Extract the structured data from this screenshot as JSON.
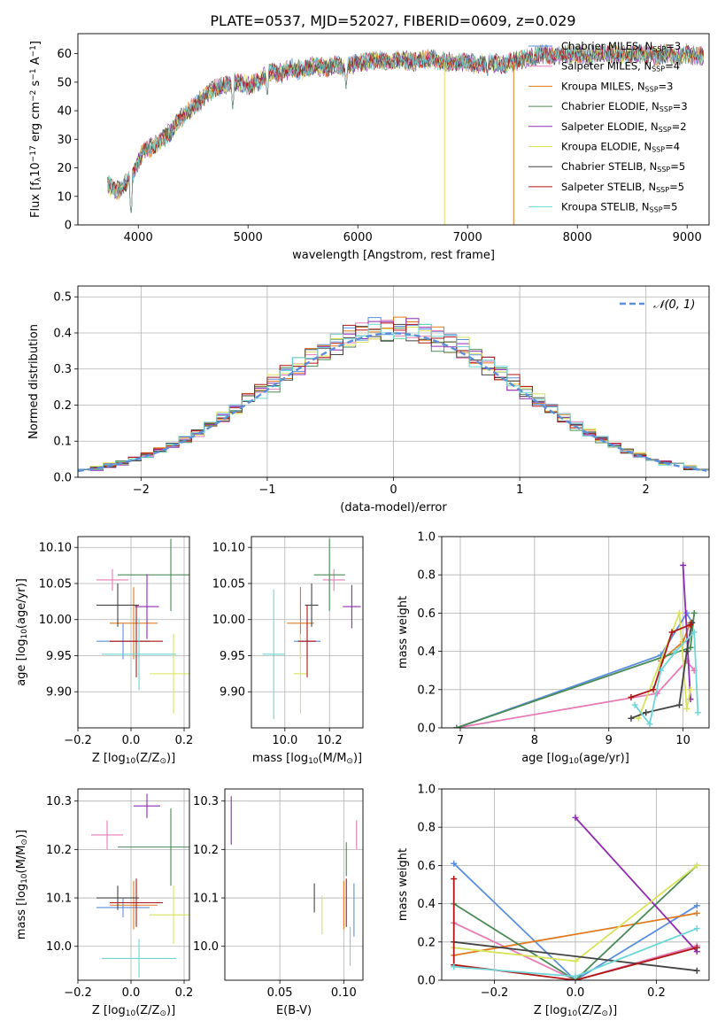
{
  "figure": {
    "title": "PLATE=0537, MJD=52027, FIBERID=0609, z=0.029"
  },
  "colors": {
    "chabrier_miles": "#5a8fde",
    "salpeter_miles": "#e67bb5",
    "kroupa_miles": "#e07a1f",
    "chabrier_elodie": "#4a8a55",
    "salpeter_elodie": "#8e2bb0",
    "kroupa_elodie": "#d8e35a",
    "chabrier_stelib": "#444444",
    "salpeter_stelib": "#b01515",
    "kroupa_stelib": "#6ed6d6",
    "normal": "#5b8fd8",
    "grid": "#b0b0b0"
  },
  "chart_data": [
    {
      "id": "spectrum",
      "type": "line",
      "xlabel": "wavelength [Angstrom, rest frame]",
      "ylabel": "Flux [f",
      "ylabel_sub": "λ",
      "ylabel_rest": "10",
      "ylabel_exp": "−17",
      "ylabel_unit": " erg cm",
      "ylabel_unit_exp": "−2",
      "ylabel_unit2": " s",
      "ylabel_unit2_exp": "−1",
      "ylabel_unit3": " A",
      "ylabel_unit3_exp": "−1",
      "ylabel_end": "]",
      "xlim": [
        3450,
        9200
      ],
      "ylim": [
        0,
        67
      ],
      "xticks": [
        4000,
        5000,
        6000,
        7000,
        8000,
        9000
      ],
      "yticks": [
        0,
        10,
        20,
        30,
        40,
        50,
        60
      ],
      "grid": false,
      "legend_placement": "top-right",
      "continuum_x": [
        3720,
        3800,
        3850,
        3900,
        3950,
        4000,
        4050,
        4100,
        4200,
        4300,
        4400,
        4500,
        4600,
        4700,
        4800,
        4900,
        5000,
        5100,
        5200,
        5300,
        5400,
        5500,
        5600,
        5700,
        5800,
        5900,
        6000,
        6100,
        6200,
        6300,
        6400,
        6500,
        6600,
        6700,
        6800,
        6900,
        7000,
        7100,
        7200,
        7300,
        7400,
        7500,
        7600,
        7700,
        7800,
        7900,
        8000,
        8100,
        8200,
        8300,
        8400,
        8500,
        8600,
        8700,
        8800,
        8900,
        9000,
        9100,
        9200
      ],
      "continuum_y": [
        14,
        12,
        13,
        15,
        18,
        22,
        26,
        27,
        29,
        33,
        38,
        41,
        45,
        48,
        49,
        50,
        49,
        50,
        54,
        53,
        55,
        54,
        56,
        55,
        56,
        55,
        57,
        57,
        58,
        57,
        58,
        57,
        58,
        58,
        57,
        57,
        57,
        56,
        57,
        56,
        57,
        58,
        59,
        60,
        59,
        60,
        60,
        59,
        60,
        60,
        59,
        60,
        60,
        59,
        60,
        59,
        60,
        59,
        59
      ],
      "dips": [
        {
          "x": 3934,
          "y": 3
        },
        {
          "x": 4861,
          "y": 40
        },
        {
          "x": 5175,
          "y": 44
        },
        {
          "x": 5893,
          "y": 47
        },
        {
          "x": 7180,
          "y": 51
        },
        {
          "x": 7600,
          "y": 55
        }
      ],
      "drop_lines": [
        {
          "x": 6790,
          "series": "kroupa_elodie"
        },
        {
          "x": 7420,
          "series": "kroupa_miles"
        }
      ],
      "series": [
        {
          "key": "chabrier_miles",
          "label_pre": "Chabrier MILES, N",
          "label_sub": "SSP",
          "label_post": "=3"
        },
        {
          "key": "salpeter_miles",
          "label_pre": "Salpeter MILES, N",
          "label_sub": "SSP",
          "label_post": "=4"
        },
        {
          "key": "kroupa_miles",
          "label_pre": "Kroupa MILES, N",
          "label_sub": "SSP",
          "label_post": "=3"
        },
        {
          "key": "chabrier_elodie",
          "label_pre": "Chabrier ELODIE, N",
          "label_sub": "SSP",
          "label_post": "=3"
        },
        {
          "key": "salpeter_elodie",
          "label_pre": "Salpeter ELODIE, N",
          "label_sub": "SSP",
          "label_post": "=2"
        },
        {
          "key": "kroupa_elodie",
          "label_pre": "Kroupa ELODIE, N",
          "label_sub": "SSP",
          "label_post": "=4"
        },
        {
          "key": "chabrier_stelib",
          "label_pre": "Chabrier STELIB, N",
          "label_sub": "SSP",
          "label_post": "=5"
        },
        {
          "key": "salpeter_stelib",
          "label_pre": "Salpeter STELIB, N",
          "label_sub": "SSP",
          "label_post": "=5"
        },
        {
          "key": "kroupa_stelib",
          "label_pre": "Kroupa STELIB, N",
          "label_sub": "SSP",
          "label_post": "=5"
        }
      ]
    },
    {
      "id": "residuals",
      "type": "histogram",
      "xlabel": "(data-model)/error",
      "ylabel": "Normed distribution",
      "xlim": [
        -2.5,
        2.5
      ],
      "ylim": [
        0,
        0.53
      ],
      "xticks": [
        -2,
        -1,
        0,
        1,
        2
      ],
      "yticks": [
        0.0,
        0.1,
        0.2,
        0.3,
        0.4,
        0.5
      ],
      "grid": true,
      "legend_placement": "top-right",
      "normal_label": "𝒩(0, 1)",
      "bin_width": 0.1,
      "series_order": [
        "chabrier_miles",
        "salpeter_miles",
        "kroupa_miles",
        "chabrier_elodie",
        "salpeter_elodie",
        "kroupa_elodie",
        "chabrier_stelib",
        "salpeter_stelib",
        "kroupa_stelib"
      ],
      "peaks": [
        0.49,
        0.46,
        0.48,
        0.43,
        0.47,
        0.5,
        0.45,
        0.48,
        0.47
      ]
    },
    {
      "id": "age_vs_Z",
      "type": "errorbar",
      "xlabel": "Z [log",
      "xlabel_sub": "10",
      "xlabel_rest": "(Z/Z",
      "xlabel_sub2": "⊙",
      "xlabel_end": ")]",
      "ylabel": "age  [log",
      "ylabel_sub": "10",
      "ylabel_rest": "(age/yr)]",
      "xlim": [
        -0.2,
        0.22
      ],
      "ylim": [
        9.85,
        10.115
      ],
      "xticks": [
        -0.2,
        0.0,
        0.2
      ],
      "yticks": [
        9.9,
        9.95,
        10.0,
        10.05,
        10.1
      ],
      "grid": true,
      "points": [
        {
          "key": "chabrier_miles",
          "x": -0.03,
          "xerr": 0.1,
          "y": 9.97,
          "yerr": 0.025
        },
        {
          "key": "salpeter_miles",
          "x": -0.07,
          "xerr": 0.06,
          "y": 10.055,
          "yerr": 0.015
        },
        {
          "key": "kroupa_miles",
          "x": 0.01,
          "xerr": 0.09,
          "y": 9.995,
          "yerr": 0.05
        },
        {
          "key": "chabrier_elodie",
          "x": 0.15,
          "xerr": 0.2,
          "y": 10.062,
          "yerr": 0.05
        },
        {
          "key": "salpeter_elodie",
          "x": 0.06,
          "xerr": 0.045,
          "y": 10.018,
          "yerr": 0.045
        },
        {
          "key": "kroupa_elodie",
          "x": 0.16,
          "xerr": 0.09,
          "y": 9.925,
          "yerr": 0.055
        },
        {
          "key": "chabrier_stelib",
          "x": -0.05,
          "xerr": 0.08,
          "y": 10.02,
          "yerr": 0.03
        },
        {
          "key": "salpeter_stelib",
          "x": 0.02,
          "xerr": 0.1,
          "y": 9.97,
          "yerr": 0.05
        },
        {
          "key": "kroupa_stelib",
          "x": 0.03,
          "xerr": 0.14,
          "y": 9.952,
          "yerr": 0.05
        }
      ]
    },
    {
      "id": "age_vs_mass",
      "type": "errorbar",
      "xlabel": "mass [log",
      "xlabel_sub": "10",
      "xlabel_rest": "(M/M",
      "xlabel_sub2": "⊙",
      "xlabel_end": ")]",
      "xlim": [
        9.85,
        10.35
      ],
      "ylim": [
        9.85,
        10.115
      ],
      "xticks": [
        10.0,
        10.2
      ],
      "yticks": [
        9.9,
        9.95,
        10.0,
        10.05,
        10.1
      ],
      "grid": true,
      "points": [
        {
          "key": "chabrier_miles",
          "x": 10.1,
          "xerr": 0.06,
          "y": 9.97,
          "yerr": 0.025
        },
        {
          "key": "salpeter_miles",
          "x": 10.22,
          "xerr": 0.05,
          "y": 10.055,
          "yerr": 0.015
        },
        {
          "key": "kroupa_miles",
          "x": 10.07,
          "xerr": 0.06,
          "y": 9.995,
          "yerr": 0.05
        },
        {
          "key": "chabrier_elodie",
          "x": 10.2,
          "xerr": 0.07,
          "y": 10.062,
          "yerr": 0.05
        },
        {
          "key": "salpeter_elodie",
          "x": 10.3,
          "xerr": 0.04,
          "y": 10.018,
          "yerr": 0.03
        },
        {
          "key": "kroupa_elodie",
          "x": 10.07,
          "xerr": 0.03,
          "y": 9.925,
          "yerr": 0.055
        },
        {
          "key": "chabrier_stelib",
          "x": 10.12,
          "xerr": 0.03,
          "y": 10.02,
          "yerr": 0.03
        },
        {
          "key": "salpeter_stelib",
          "x": 10.1,
          "xerr": 0.04,
          "y": 9.97,
          "yerr": 0.05
        },
        {
          "key": "kroupa_stelib",
          "x": 9.95,
          "xerr": 0.05,
          "y": 9.952,
          "yerr": 0.09
        }
      ]
    },
    {
      "id": "weight_vs_age",
      "type": "line",
      "xlabel": "age  [log",
      "xlabel_sub": "10",
      "xlabel_rest": "(age/yr)]",
      "ylabel": "mass weight",
      "xlim": [
        6.75,
        10.35
      ],
      "ylim": [
        0,
        1.0
      ],
      "xticks": [
        7,
        8,
        9,
        10
      ],
      "yticks": [
        0.0,
        0.2,
        0.4,
        0.6,
        0.8,
        1.0
      ],
      "grid": true,
      "series": [
        {
          "key": "chabrier_miles",
          "points": [
            [
              6.95,
              0.0
            ],
            [
              9.7,
              0.38
            ],
            [
              10.05,
              0.6
            ],
            [
              10.12,
              0.55
            ]
          ]
        },
        {
          "key": "salpeter_miles",
          "points": [
            [
              6.95,
              0.0
            ],
            [
              9.65,
              0.18
            ],
            [
              10.05,
              0.35
            ],
            [
              10.15,
              0.3
            ]
          ]
        },
        {
          "key": "kroupa_miles",
          "points": [
            [
              9.7,
              0.35
            ],
            [
              10.0,
              0.45
            ],
            [
              10.1,
              0.55
            ]
          ]
        },
        {
          "key": "chabrier_elodie",
          "points": [
            [
              6.95,
              0.0
            ],
            [
              10.1,
              0.42
            ],
            [
              10.15,
              0.6
            ]
          ]
        },
        {
          "key": "salpeter_elodie",
          "points": [
            [
              10.0,
              0.85
            ],
            [
              10.1,
              0.15
            ]
          ]
        },
        {
          "key": "kroupa_elodie",
          "points": [
            [
              9.4,
              0.05
            ],
            [
              9.95,
              0.6
            ],
            [
              10.05,
              0.1
            ],
            [
              10.1,
              0.2
            ]
          ]
        },
        {
          "key": "chabrier_stelib",
          "points": [
            [
              9.3,
              0.05
            ],
            [
              9.5,
              0.08
            ],
            [
              9.95,
              0.12
            ],
            [
              10.05,
              0.4
            ],
            [
              10.12,
              0.55
            ]
          ]
        },
        {
          "key": "salpeter_stelib",
          "points": [
            [
              9.3,
              0.16
            ],
            [
              9.6,
              0.2
            ],
            [
              9.85,
              0.5
            ],
            [
              10.1,
              0.54
            ]
          ]
        },
        {
          "key": "kroupa_stelib",
          "points": [
            [
              9.35,
              0.12
            ],
            [
              9.55,
              0.02
            ],
            [
              9.7,
              0.3
            ],
            [
              9.9,
              0.4
            ],
            [
              10.15,
              0.5
            ],
            [
              10.2,
              0.08
            ]
          ]
        }
      ]
    },
    {
      "id": "mass_vs_Z",
      "type": "errorbar",
      "xlabel": "Z [log",
      "xlabel_sub": "10",
      "xlabel_rest": "(Z/Z",
      "xlabel_sub2": "⊙",
      "xlabel_end": ")]",
      "ylabel": "mass [log",
      "ylabel_sub": "10",
      "ylabel_rest": "(M/M",
      "ylabel_sub2": "⊙",
      "ylabel_end": ")]",
      "xlim": [
        -0.2,
        0.22
      ],
      "ylim": [
        9.93,
        10.325
      ],
      "xticks": [
        -0.2,
        0.0,
        0.2
      ],
      "yticks": [
        10.0,
        10.1,
        10.2,
        10.3
      ],
      "grid": true,
      "points": [
        {
          "key": "chabrier_miles",
          "x": -0.03,
          "xerr": 0.1,
          "y": 10.08,
          "yerr": 0.02
        },
        {
          "key": "salpeter_miles",
          "x": -0.09,
          "xerr": 0.06,
          "y": 10.23,
          "yerr": 0.03
        },
        {
          "key": "kroupa_miles",
          "x": 0.01,
          "xerr": 0.09,
          "y": 10.085,
          "yerr": 0.05
        },
        {
          "key": "chabrier_elodie",
          "x": 0.15,
          "xerr": 0.2,
          "y": 10.205,
          "yerr": 0.08
        },
        {
          "key": "salpeter_elodie",
          "x": 0.06,
          "xerr": 0.05,
          "y": 10.29,
          "yerr": 0.025
        },
        {
          "key": "kroupa_elodie",
          "x": 0.16,
          "xerr": 0.09,
          "y": 10.065,
          "yerr": 0.06
        },
        {
          "key": "chabrier_stelib",
          "x": -0.05,
          "xerr": 0.08,
          "y": 10.1,
          "yerr": 0.025
        },
        {
          "key": "salpeter_stelib",
          "x": 0.02,
          "xerr": 0.1,
          "y": 10.09,
          "yerr": 0.05
        },
        {
          "key": "kroupa_stelib",
          "x": 0.03,
          "xerr": 0.14,
          "y": 9.975,
          "yerr": 0.04
        }
      ]
    },
    {
      "id": "mass_vs_ebv",
      "type": "errorbar",
      "xlabel": "E(B-V)",
      "xlim": [
        0.007,
        0.115
      ],
      "ylim": [
        9.93,
        10.325
      ],
      "xticks": [
        0.05,
        0.1
      ],
      "yticks": [
        10.0,
        10.1,
        10.2,
        10.3
      ],
      "grid": true,
      "points": [
        {
          "key": "chabrier_miles",
          "x": 0.108,
          "y": 10.075,
          "yerr": 0.055
        },
        {
          "key": "salpeter_miles",
          "x": 0.11,
          "y": 10.23,
          "yerr": 0.03
        },
        {
          "key": "kroupa_miles",
          "x": 0.1,
          "y": 10.085,
          "yerr": 0.05
        },
        {
          "key": "chabrier_elodie",
          "x": 0.102,
          "y": 10.18,
          "yerr": 0.035
        },
        {
          "key": "salpeter_elodie",
          "x": 0.012,
          "y": 10.26,
          "yerr": 0.05
        },
        {
          "key": "kroupa_elodie",
          "x": 0.083,
          "y": 10.065,
          "yerr": 0.04
        },
        {
          "key": "chabrier_stelib",
          "x": 0.077,
          "y": 10.1,
          "yerr": 0.03
        },
        {
          "key": "salpeter_stelib",
          "x": 0.102,
          "y": 10.09,
          "yerr": 0.05
        },
        {
          "key": "kroupa_stelib",
          "x": 0.105,
          "y": 10.0,
          "yerr": 0.04
        }
      ]
    },
    {
      "id": "weight_vs_Z",
      "type": "line",
      "xlabel": "Z [log",
      "xlabel_sub": "10",
      "xlabel_rest": "(Z/Z",
      "xlabel_sub2": "⊙",
      "xlabel_end": ")]",
      "ylabel": "mass weight",
      "xlim": [
        -0.33,
        0.33
      ],
      "ylim": [
        0,
        1.0
      ],
      "xticks": [
        -0.2,
        0.0,
        0.2
      ],
      "yticks": [
        0.0,
        0.2,
        0.4,
        0.6,
        0.8,
        1.0
      ],
      "grid": true,
      "series": [
        {
          "key": "chabrier_miles",
          "points": [
            [
              -0.3,
              0.61
            ],
            [
              0.0,
              0.0
            ],
            [
              0.3,
              0.39
            ]
          ]
        },
        {
          "key": "salpeter_miles",
          "points": [
            [
              -0.3,
              0.3
            ],
            [
              0.0,
              0.0
            ],
            [
              0.3,
              0.18
            ]
          ]
        },
        {
          "key": "kroupa_miles",
          "points": [
            [
              -0.3,
              0.13
            ],
            [
              0.3,
              0.35
            ]
          ]
        },
        {
          "key": "chabrier_elodie",
          "points": [
            [
              -0.3,
              0.4
            ],
            [
              0.0,
              0.0
            ],
            [
              0.3,
              0.6
            ]
          ]
        },
        {
          "key": "salpeter_elodie",
          "points": [
            [
              0.0,
              0.85
            ],
            [
              0.3,
              0.15
            ]
          ]
        },
        {
          "key": "kroupa_elodie",
          "points": [
            [
              -0.3,
              0.17
            ],
            [
              0.0,
              0.1
            ],
            [
              0.3,
              0.6
            ]
          ]
        },
        {
          "key": "chabrier_stelib",
          "points": [
            [
              -0.3,
              0.2
            ],
            [
              0.3,
              0.05
            ]
          ]
        },
        {
          "key": "salpeter_stelib",
          "points": [
            [
              -0.3,
              0.53
            ],
            [
              -0.3,
              0.08
            ],
            [
              0.0,
              0.0
            ],
            [
              0.3,
              0.17
            ]
          ]
        },
        {
          "key": "kroupa_stelib",
          "points": [
            [
              -0.3,
              0.07
            ],
            [
              0.0,
              0.02
            ],
            [
              0.3,
              0.27
            ]
          ]
        }
      ]
    }
  ]
}
